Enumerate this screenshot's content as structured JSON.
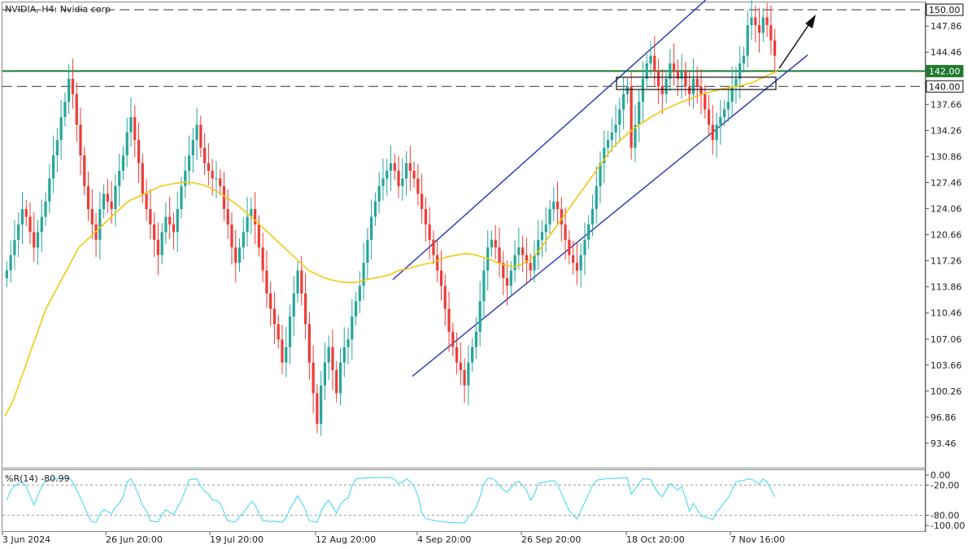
{
  "header": {
    "title": "NVIDIA, H4:  Nvidia corp"
  },
  "indicator": {
    "title": "%R(14) -80.99"
  },
  "colors": {
    "up": "#26a69a",
    "down": "#ef3b36",
    "ma": "#f2c811",
    "channel": "#2f3fb7",
    "wpr": "#38d6ee",
    "level_green": "#1f7a2e",
    "level_dash": "#333333",
    "grid": "#bdbdbd"
  },
  "chart_data": {
    "type": "candlestick",
    "symbol": "NVIDIA",
    "timeframe": "H4",
    "y_ticks": [
      "147.86",
      "144.46",
      "140.00",
      "137.66",
      "134.26",
      "130.86",
      "127.46",
      "124.06",
      "120.66",
      "117.26",
      "113.86",
      "110.46",
      "107.06",
      "103.66",
      "100.26",
      "96.86",
      "93.46"
    ],
    "x_ticks": [
      "3 Jun 2024",
      "26 Jun 20:00",
      "19 Jul 20:00",
      "12 Aug 20:00",
      "4 Sep 20:00",
      "26 Sep 20:00",
      "18 Oct 20:00",
      "7 Nov 16:00"
    ],
    "price_labels": [
      {
        "text": "150.00",
        "value": 150.0,
        "style": "dashed"
      },
      {
        "text": "142.00",
        "value": 142.0,
        "style": "green"
      },
      {
        "text": "140.00",
        "value": 140.0,
        "style": "dashed"
      }
    ],
    "ylim": [
      91.5,
      151.5
    ],
    "closes": [
      116,
      118,
      120,
      122,
      124,
      123,
      121,
      119,
      121,
      123,
      125,
      128,
      131,
      133,
      136,
      138,
      141,
      139,
      135,
      131,
      127,
      124,
      122,
      120,
      124,
      126,
      125,
      124,
      127,
      129,
      131,
      134,
      136,
      133,
      130,
      126,
      124,
      122,
      120,
      118,
      121,
      123,
      122,
      121,
      124,
      127,
      129,
      131,
      133,
      135,
      132,
      130,
      129,
      128,
      128,
      127,
      124,
      122,
      119,
      117,
      119,
      121,
      123,
      124,
      122,
      119,
      116,
      113,
      111,
      109,
      107,
      104,
      106,
      110,
      113,
      116,
      113,
      109,
      104,
      100,
      96,
      101,
      104,
      106,
      103,
      100,
      104,
      106,
      107,
      110,
      112,
      114,
      117,
      120,
      123,
      125,
      127,
      128,
      129,
      130,
      129,
      127,
      128,
      130,
      129,
      128,
      126,
      124,
      122,
      120,
      118,
      116,
      114,
      111,
      108,
      106,
      104,
      103,
      101,
      104,
      106,
      108,
      112,
      116,
      119,
      120,
      119,
      117,
      115,
      114,
      116,
      118,
      119,
      118,
      117,
      116,
      118,
      120,
      121,
      122,
      124,
      125,
      124,
      122,
      120,
      118,
      117,
      116,
      118,
      120,
      122,
      124,
      127,
      130,
      132,
      133,
      134,
      135,
      137,
      139,
      140,
      132,
      135,
      138,
      141,
      143,
      144,
      142,
      140,
      139,
      141,
      143,
      142,
      141,
      142,
      140,
      139,
      141,
      140,
      139,
      137,
      135,
      133,
      135,
      136,
      137,
      138,
      140,
      141,
      143,
      144,
      148,
      149,
      148,
      147,
      149,
      148,
      146,
      144
    ],
    "ma": {
      "period": 50,
      "values": [
        97,
        99,
        102,
        105,
        108,
        111,
        113,
        115,
        117,
        119,
        120,
        121,
        122,
        123,
        124,
        125,
        125.5,
        126,
        126.5,
        127,
        127.2,
        127.4,
        127.5,
        127.4,
        127.2,
        126.8,
        126.2,
        125.5,
        124.8,
        123.9,
        123,
        122,
        121,
        120,
        119,
        118,
        117,
        116,
        115.5,
        115,
        114.7,
        114.5,
        114.4,
        114.5,
        114.8,
        115,
        115.2,
        115.5,
        116,
        116.2,
        116.5,
        116.8,
        117,
        117.4,
        117.8,
        118,
        118.2,
        118.1,
        117.8,
        117.5,
        117,
        116.7,
        116.5,
        116.8,
        117.5,
        118.5,
        120,
        121.5,
        123,
        124.5,
        126,
        127.5,
        129,
        130.5,
        132,
        133,
        134,
        134.8,
        135.5,
        136.2,
        136.8,
        137.3,
        137.8,
        138.2,
        138.6,
        139,
        139.3,
        139.6,
        139.8,
        140.0,
        140.2,
        140.5,
        141.0,
        141.5,
        142.0
      ]
    },
    "williams_r": {
      "period": 14,
      "ylim": [
        -105,
        5
      ],
      "levels": [
        -20,
        -80
      ],
      "y_ticks": [
        "0.00",
        "-20.00",
        "-80.00",
        "-100.00"
      ]
    }
  }
}
